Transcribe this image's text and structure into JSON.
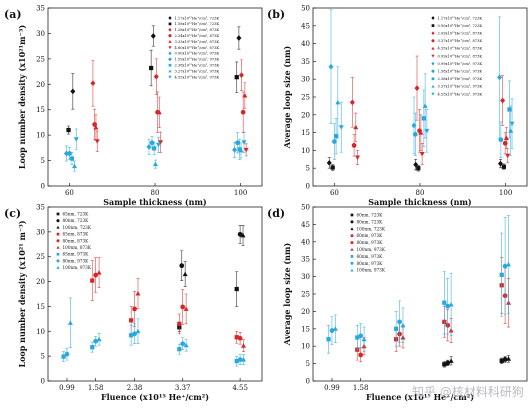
{
  "watermark": "知乎 @核材料科研狗",
  "chart_data": [
    {
      "id": "a",
      "panel_label": "(a)",
      "type": "scatter",
      "xlabel": "Sample thickness (nm)",
      "ylabel": "Loop number density (x10²¹m⁻³)",
      "xlim": [
        55,
        105
      ],
      "ylim": [
        0,
        35
      ],
      "xticks": [
        60,
        80,
        100
      ],
      "yticks": [
        0,
        5,
        10,
        15,
        20,
        25,
        30,
        35
      ],
      "legend_position": "top-right",
      "series": [
        {
          "name": "1.17x10¹⁵He⁺/cm², 723K",
          "color": "#111111",
          "marker": "diamond",
          "points": [
            [
              60.8,
              18.6,
              3.5
            ],
            [
              79.6,
              29.5,
              2.0
            ],
            [
              99.6,
              29.1,
              2.2
            ]
          ]
        },
        {
          "name": "1.58x10¹⁵He⁺/cm², 723K",
          "color": "#111111",
          "marker": "square",
          "points": [
            [
              59.8,
              11.0,
              0.8
            ],
            [
              79.1,
              23.2,
              3.5
            ],
            [
              99.1,
              21.4,
              3.0
            ]
          ]
        },
        {
          "name": "1.28x10¹⁵He⁺/cm², 873K",
          "color": "#d62728",
          "marker": "diamond",
          "points": [
            [
              65.5,
              20.2,
              4.5
            ],
            [
              80.3,
              21.5,
              3.5
            ],
            [
              100.2,
              21.8,
              3.0
            ]
          ]
        },
        {
          "name": "2.34x10¹⁵He⁺/cm², 873K",
          "color": "#d62728",
          "marker": "circle",
          "points": [
            [
              65.9,
              12.1,
              3.0
            ],
            [
              80.6,
              14.5,
              4.0
            ],
            [
              100.6,
              14.5,
              4.0
            ]
          ]
        },
        {
          "name": "3.33x10¹⁵He⁺/cm², 873K",
          "color": "#d62728",
          "marker": "triangle",
          "points": [
            [
              66.2,
              11.5,
              2.5
            ],
            [
              81.0,
              14.5,
              3.0
            ],
            [
              101.0,
              17.8,
              2.5
            ]
          ]
        },
        {
          "name": "4.80x10¹⁵He⁺/cm², 873K",
          "color": "#d62728",
          "marker": "triangle-down",
          "points": [
            [
              66.5,
              8.8,
              2.0
            ],
            [
              81.3,
              8.6,
              2.0
            ],
            [
              101.3,
              7.1,
              1.2
            ]
          ]
        },
        {
          "name": "0.90x10¹⁵He⁺/cm², 973K",
          "color": "#29a8dc",
          "marker": "diamond",
          "points": [
            [
              59.3,
              6.4,
              1.5
            ],
            [
              78.6,
              7.7,
              1.5
            ],
            [
              98.6,
              7.1,
              1.5
            ]
          ]
        },
        {
          "name": "1.59x10¹⁵He⁺/cm², 973K",
          "color": "#29a8dc",
          "marker": "circle",
          "points": [
            [
              60.0,
              6.4,
              1.2
            ],
            [
              79.3,
              8.5,
              1.2
            ],
            [
              99.3,
              8.5,
              2.0
            ]
          ]
        },
        {
          "name": "2.38x10¹⁵He⁺/cm², 973K",
          "color": "#29a8dc",
          "marker": "square",
          "points": [
            [
              60.6,
              5.4,
              1.2
            ],
            [
              79.8,
              7.4,
              1.2
            ],
            [
              99.8,
              7.2,
              2.0
            ]
          ]
        },
        {
          "name": "3.27x10¹⁵He⁺/cm², 973K",
          "color": "#29a8dc",
          "marker": "triangle",
          "points": [
            [
              61.2,
              3.9,
              1.0
            ],
            [
              80.1,
              4.3,
              0.8
            ],
            [
              100.1,
              7.0,
              1.5
            ]
          ]
        },
        {
          "name": "4.55x10¹⁵He⁺/cm², 973K",
          "color": "#29a8dc",
          "marker": "triangle-down",
          "points": [
            [
              61.6,
              9.2,
              2.0
            ],
            [
              80.8,
              8.1,
              1.5
            ],
            [
              100.8,
              8.6,
              2.0
            ]
          ]
        }
      ]
    },
    {
      "id": "b",
      "panel_label": "(b)",
      "type": "scatter",
      "xlabel": "Sample thickness (nm)",
      "ylabel": "Average loop size (nm)",
      "xlim": [
        55,
        105
      ],
      "ylim": [
        0,
        50
      ],
      "xticks": [
        60,
        80,
        100
      ],
      "yticks": [
        0,
        5,
        10,
        15,
        20,
        25,
        30,
        35,
        40,
        45,
        50
      ],
      "legend_position": "top-right",
      "series": [
        {
          "name": "1.17x10¹⁵He⁺/cm², 723K",
          "color": "#111111",
          "marker": "diamond",
          "points": [
            [
              58.8,
              6.5,
              1.5
            ],
            [
              79.0,
              6.0,
              1.5
            ],
            [
              98.8,
              6.3,
              1.2
            ]
          ]
        },
        {
          "name": "0.90x10¹⁵He⁺/cm², 723K",
          "color": "#111111",
          "marker": "square",
          "points": [
            [
              59.6,
              5.2,
              0.8
            ],
            [
              79.6,
              5.0,
              0.8
            ],
            [
              99.6,
              5.4,
              0.8
            ]
          ]
        },
        {
          "name": "2.09x10¹⁵He⁺/cm², 873K",
          "color": "#d62728",
          "marker": "diamond",
          "points": [
            [
              64.2,
              23.5,
              7.0
            ],
            [
              79.3,
              27.5,
              9.0
            ],
            [
              99.3,
              24.0,
              7.0
            ]
          ]
        },
        {
          "name": "3.37x10¹⁵He⁺/cm², 873K",
          "color": "#d62728",
          "marker": "circle",
          "points": [
            [
              64.6,
              11.4,
              3.0
            ],
            [
              79.9,
              15.5,
              6.0
            ],
            [
              99.9,
              12.0,
              3.0
            ]
          ]
        },
        {
          "name": "4.55x10¹⁵He⁺/cm², 873K",
          "color": "#d62728",
          "marker": "triangle",
          "points": [
            [
              65.0,
              16.5,
              4.0
            ],
            [
              80.2,
              15.0,
              5.0
            ],
            [
              100.2,
              13.5,
              3.0
            ]
          ]
        },
        {
          "name": "0.99x10¹⁵He⁺/cm², 873K",
          "color": "#d62728",
          "marker": "triangle-down",
          "points": [
            [
              65.4,
              8.0,
              2.0
            ],
            [
              80.5,
              9.0,
              3.0
            ],
            [
              100.5,
              8.5,
              2.0
            ]
          ]
        },
        {
          "name": "0.99x10¹⁵He⁺/cm², 973K",
          "color": "#29a8dc",
          "marker": "diamond",
          "points": [
            [
              59.2,
              33.5,
              16.0
            ],
            [
              78.6,
              17.0,
              8.0
            ],
            [
              98.6,
              30.5,
              17.0
            ]
          ]
        },
        {
          "name": "1.58x10¹⁵He⁺/cm², 973K",
          "color": "#29a8dc",
          "marker": "circle",
          "points": [
            [
              60.0,
              12.5,
              5.0
            ],
            [
              78.9,
              14.5,
              6.0
            ],
            [
              98.9,
              13.0,
              5.0
            ]
          ]
        },
        {
          "name": "2.38x10¹⁵He⁺/cm², 973K",
          "color": "#29a8dc",
          "marker": "square",
          "points": [
            [
              60.4,
              14.0,
              5.0
            ],
            [
              80.9,
              19.0,
              8.0
            ],
            [
              100.9,
              21.5,
              8.0
            ]
          ]
        },
        {
          "name": "3.37x10¹⁵He⁺/cm², 973K",
          "color": "#29a8dc",
          "marker": "triangle",
          "points": [
            [
              60.8,
              23.5,
              10.0
            ],
            [
              81.2,
              22.5,
              9.0
            ],
            [
              101.2,
              15.5,
              7.0
            ]
          ]
        },
        {
          "name": "4.55x10¹⁵He⁺/cm², 973K",
          "color": "#29a8dc",
          "marker": "triangle-down",
          "points": [
            [
              61.6,
              16.5,
              7.0
            ],
            [
              81.6,
              15.5,
              6.0
            ],
            [
              101.5,
              17.5,
              7.0
            ]
          ]
        }
      ]
    },
    {
      "id": "c",
      "panel_label": "(c)",
      "type": "scatter",
      "xlabel": "Fluence (x10¹⁵ He⁺/cm²)",
      "ylabel": "Loop number density (x10²¹ m⁻³)",
      "xlim": [
        0.6,
        5.0
      ],
      "ylim": [
        0,
        35
      ],
      "xticks": [
        0.99,
        1.58,
        2.38,
        3.37,
        4.55
      ],
      "yticks": [
        0,
        5,
        10,
        15,
        20,
        25,
        30,
        35
      ],
      "legend_position": "top-left",
      "series": [
        {
          "name": "65nm, 723K",
          "color": "#111111",
          "marker": "square",
          "points": [
            [
              3.3,
              10.8,
              0.8
            ],
            [
              4.48,
              18.5,
              3.5
            ]
          ]
        },
        {
          "name": "80nm, 723K",
          "color": "#111111",
          "marker": "circle",
          "points": [
            [
              3.35,
              23.2,
              3.0
            ],
            [
              4.55,
              29.5,
              1.8
            ]
          ]
        },
        {
          "name": "100nm, 723K",
          "color": "#111111",
          "marker": "triangle",
          "points": [
            [
              3.42,
              21.5,
              2.5
            ],
            [
              4.61,
              29.3,
              2.0
            ]
          ]
        },
        {
          "name": "65nm, 873K",
          "color": "#d62728",
          "marker": "square",
          "points": [
            [
              1.51,
              20.2,
              4.0
            ],
            [
              2.31,
              12.2,
              2.8
            ],
            [
              3.3,
              11.5,
              2.0
            ],
            [
              4.48,
              8.8,
              1.2
            ]
          ]
        },
        {
          "name": "80nm, 873K",
          "color": "#d62728",
          "marker": "circle",
          "points": [
            [
              1.58,
              21.3,
              3.5
            ],
            [
              2.38,
              14.5,
              3.5
            ],
            [
              3.37,
              14.9,
              3.5
            ],
            [
              4.55,
              8.6,
              1.2
            ]
          ]
        },
        {
          "name": "100nm, 873K",
          "color": "#d62728",
          "marker": "triangle",
          "points": [
            [
              1.65,
              21.8,
              3.0
            ],
            [
              2.45,
              17.6,
              3.0
            ],
            [
              3.44,
              14.5,
              3.0
            ],
            [
              4.62,
              7.1,
              1.2
            ]
          ]
        },
        {
          "name": "65nm, 973K",
          "color": "#29a8dc",
          "marker": "square",
          "points": [
            [
              0.92,
              4.9,
              1.0
            ],
            [
              1.51,
              6.8,
              1.0
            ],
            [
              2.31,
              9.2,
              2.0
            ],
            [
              3.3,
              6.4,
              1.0
            ],
            [
              4.48,
              4.0,
              1.0
            ]
          ]
        },
        {
          "name": "80nm, 973K",
          "color": "#29a8dc",
          "marker": "circle",
          "points": [
            [
              0.99,
              5.4,
              1.2
            ],
            [
              1.58,
              8.0,
              1.0
            ],
            [
              2.38,
              9.5,
              2.0
            ],
            [
              3.37,
              7.5,
              1.2
            ],
            [
              4.55,
              4.3,
              1.0
            ]
          ]
        },
        {
          "name": "100nm, 973K",
          "color": "#29a8dc",
          "marker": "triangle",
          "points": [
            [
              1.06,
              11.7,
              5.0
            ],
            [
              1.65,
              8.4,
              1.2
            ],
            [
              2.45,
              10.0,
              2.5
            ],
            [
              3.44,
              7.2,
              1.2
            ],
            [
              4.62,
              4.3,
              1.0
            ]
          ]
        }
      ]
    },
    {
      "id": "d",
      "panel_label": "(d)",
      "type": "scatter",
      "xlabel": "Fluence (x10¹⁵ He⁺/cm²)",
      "ylabel": "Average loop size (nm)",
      "xlim": [
        0.6,
        5.0
      ],
      "ylim": [
        0,
        50
      ],
      "xticks": [
        0.99,
        1.58
      ],
      "yticks": [
        0,
        5,
        10,
        15,
        20,
        25,
        30,
        35,
        40,
        45,
        50
      ],
      "legend_position": "top-left",
      "series": [
        {
          "name": "60nm, 723K",
          "color": "#111111",
          "marker": "square",
          "points": [
            [
              3.3,
              4.8,
              0.8
            ],
            [
              4.48,
              5.8,
              0.8
            ]
          ]
        },
        {
          "name": "80nm, 723K",
          "color": "#111111",
          "marker": "circle",
          "points": [
            [
              3.37,
              5.2,
              0.8
            ],
            [
              4.55,
              6.2,
              0.8
            ]
          ]
        },
        {
          "name": "100nm, 723K",
          "color": "#111111",
          "marker": "triangle",
          "points": [
            [
              3.44,
              5.8,
              1.2
            ],
            [
              4.62,
              6.4,
              1.0
            ]
          ]
        },
        {
          "name": "60nm, 973K",
          "color": "#d62728",
          "marker": "square",
          "points": [
            [
              1.51,
              9.0,
              3.0
            ],
            [
              2.31,
              12.0,
              3.5
            ],
            [
              3.3,
              17.0,
              4.5
            ],
            [
              4.48,
              27.5,
              8.0
            ]
          ]
        },
        {
          "name": "80nm, 973K",
          "color": "#d62728",
          "marker": "circle",
          "points": [
            [
              1.58,
              7.5,
              2.0
            ],
            [
              2.38,
              13.5,
              3.5
            ],
            [
              3.37,
              16.0,
              4.5
            ],
            [
              4.55,
              24.5,
              8.0
            ]
          ]
        },
        {
          "name": "100nm, 973K",
          "color": "#d62728",
          "marker": "triangle",
          "points": [
            [
              1.65,
              10.0,
              2.5
            ],
            [
              2.45,
              12.5,
              3.0
            ],
            [
              3.44,
              14.5,
              3.5
            ],
            [
              4.62,
              22.5,
              7.0
            ]
          ]
        },
        {
          "name": "60nm, 973K",
          "color": "#29a8dc",
          "marker": "square",
          "points": [
            [
              0.92,
              12.0,
              4.0
            ],
            [
              1.51,
              12.5,
              3.5
            ],
            [
              2.31,
              15.0,
              5.0
            ],
            [
              3.3,
              22.5,
              9.0
            ],
            [
              4.48,
              30.5,
              12.0
            ]
          ]
        },
        {
          "name": "80nm, 973K",
          "color": "#29a8dc",
          "marker": "circle",
          "points": [
            [
              0.99,
              14.5,
              4.0
            ],
            [
              1.58,
              13.0,
              3.5
            ],
            [
              2.38,
              17.0,
              6.0
            ],
            [
              3.37,
              21.5,
              8.0
            ],
            [
              4.55,
              33.0,
              14.0
            ]
          ]
        },
        {
          "name": "100nm, 973K",
          "color": "#29a8dc",
          "marker": "triangle",
          "points": [
            [
              1.06,
              15.0,
              4.0
            ],
            [
              1.65,
              12.0,
              3.5
            ],
            [
              2.45,
              16.0,
              5.0
            ],
            [
              3.44,
              22.0,
              9.0
            ],
            [
              4.62,
              33.5,
              14.0
            ]
          ]
        }
      ]
    }
  ]
}
